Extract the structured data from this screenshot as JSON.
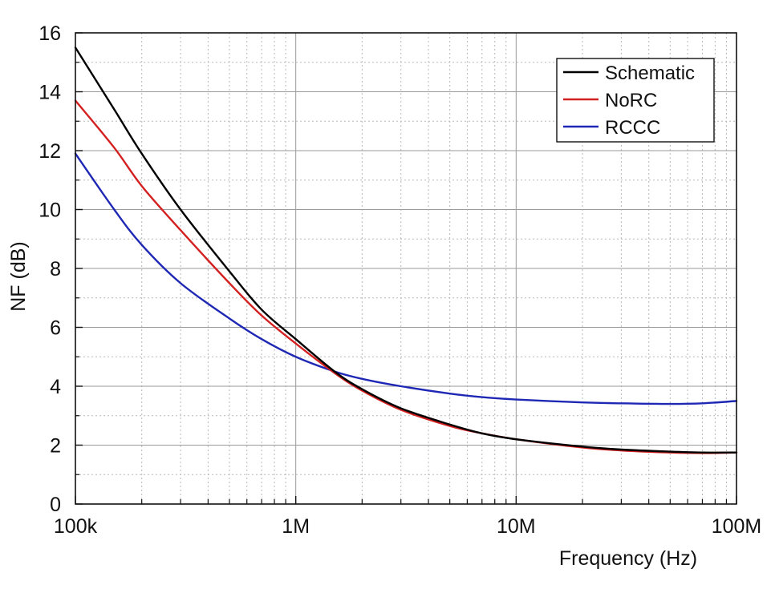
{
  "chart_data": {
    "type": "line",
    "xscale": "log",
    "xlim": [
      100000,
      100000000
    ],
    "ylim": [
      0,
      16
    ],
    "xlabel": "Frequency (Hz)",
    "ylabel": "NF (dB)",
    "grid": true,
    "legend_position": "top-right",
    "x_ticks": [
      {
        "value": 100000,
        "label": "100k"
      },
      {
        "value": 1000000,
        "label": "1M"
      },
      {
        "value": 10000000,
        "label": "10M"
      },
      {
        "value": 100000000,
        "label": "100M"
      }
    ],
    "y_ticks": [
      {
        "value": 0,
        "label": "0"
      },
      {
        "value": 2,
        "label": "2"
      },
      {
        "value": 4,
        "label": "4"
      },
      {
        "value": 6,
        "label": "6"
      },
      {
        "value": 8,
        "label": "8"
      },
      {
        "value": 10,
        "label": "10"
      },
      {
        "value": 12,
        "label": "12"
      },
      {
        "value": 14,
        "label": "14"
      },
      {
        "value": 16,
        "label": "16"
      }
    ],
    "series": [
      {
        "name": "Schematic",
        "color": "#000000",
        "x": [
          100000,
          150000,
          200000,
          300000,
          500000,
          700000,
          1000000,
          1500000,
          2000000,
          3000000,
          5000000,
          7000000,
          10000000,
          20000000,
          30000000,
          50000000,
          70000000,
          100000000
        ],
        "y": [
          15.5,
          13.4,
          11.9,
          10.0,
          7.9,
          6.6,
          5.6,
          4.5,
          3.9,
          3.25,
          2.7,
          2.4,
          2.2,
          1.95,
          1.85,
          1.78,
          1.75,
          1.75
        ]
      },
      {
        "name": "NoRC",
        "color": "#d42020",
        "x": [
          100000,
          150000,
          200000,
          300000,
          500000,
          700000,
          1000000,
          1500000,
          2000000,
          3000000,
          5000000,
          7000000,
          10000000,
          20000000,
          30000000,
          50000000,
          70000000,
          100000000
        ],
        "y": [
          13.7,
          12.1,
          10.8,
          9.3,
          7.5,
          6.4,
          5.45,
          4.45,
          3.85,
          3.2,
          2.65,
          2.4,
          2.2,
          1.92,
          1.82,
          1.75,
          1.73,
          1.75
        ]
      },
      {
        "name": "RCCC",
        "color": "#1f28b4",
        "x": [
          100000,
          150000,
          200000,
          300000,
          500000,
          700000,
          1000000,
          1500000,
          2000000,
          3000000,
          5000000,
          7000000,
          10000000,
          20000000,
          30000000,
          50000000,
          70000000,
          100000000
        ],
        "y": [
          11.9,
          10.0,
          8.8,
          7.5,
          6.3,
          5.6,
          5.0,
          4.5,
          4.25,
          4.0,
          3.75,
          3.63,
          3.55,
          3.45,
          3.42,
          3.4,
          3.42,
          3.5
        ]
      }
    ]
  }
}
